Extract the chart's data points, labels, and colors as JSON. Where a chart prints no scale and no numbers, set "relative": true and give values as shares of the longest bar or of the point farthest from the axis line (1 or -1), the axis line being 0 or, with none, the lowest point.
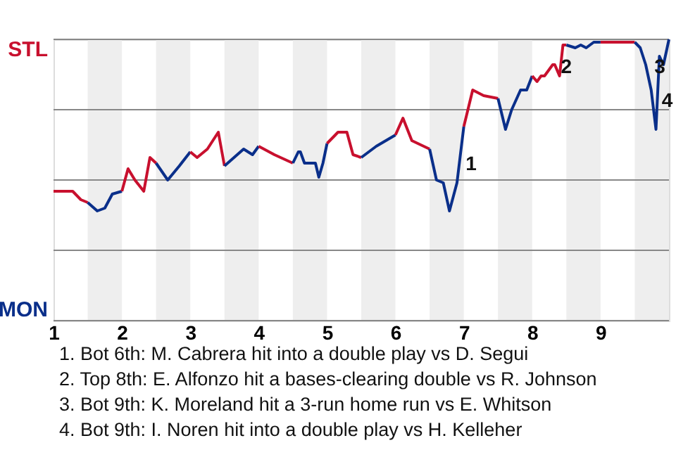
{
  "chart_data": {
    "type": "line",
    "relative": true,
    "series": [
      {
        "color": "#c8102e",
        "x": [
          1,
          1.28,
          1.4,
          1.5
        ],
        "values": [
          0.46,
          0.46,
          0.43,
          0.42
        ]
      },
      {
        "color": "#0a2f8a",
        "x": [
          1.5,
          1.64,
          1.75,
          1.86,
          2
        ],
        "values": [
          0.42,
          0.39,
          0.4,
          0.45,
          0.46
        ]
      },
      {
        "color": "#c8102e",
        "x": [
          2,
          2.09,
          2.19,
          2.32,
          2.41,
          2.5
        ],
        "values": [
          0.46,
          0.54,
          0.5,
          0.46,
          0.58,
          0.56
        ]
      },
      {
        "color": "#0a2f8a",
        "x": [
          2.5,
          2.67,
          2.84,
          3
        ],
        "values": [
          0.56,
          0.5,
          0.55,
          0.6
        ]
      },
      {
        "color": "#c8102e",
        "x": [
          3,
          3.1,
          3.25,
          3.41,
          3.5
        ],
        "values": [
          0.6,
          0.58,
          0.61,
          0.67,
          0.55
        ]
      },
      {
        "color": "#0a2f8a",
        "x": [
          3.5,
          3.78,
          3.91,
          4
        ],
        "values": [
          0.55,
          0.61,
          0.59,
          0.62
        ]
      },
      {
        "color": "#c8102e",
        "x": [
          4,
          4.23,
          4.5
        ],
        "values": [
          0.62,
          0.59,
          0.56
        ]
      },
      {
        "color": "#0a2f8a",
        "x": [
          4.5,
          4.58,
          4.61,
          4.67,
          4.83,
          4.88,
          4.94,
          5
        ],
        "values": [
          0.56,
          0.6,
          0.6,
          0.56,
          0.56,
          0.51,
          0.56,
          0.63
        ]
      },
      {
        "color": "#c8102e",
        "x": [
          5,
          5.16,
          5.29,
          5.38,
          5.5
        ],
        "values": [
          0.63,
          0.67,
          0.67,
          0.59,
          0.58
        ]
      },
      {
        "color": "#0a2f8a",
        "x": [
          5.5,
          5.72,
          6
        ],
        "values": [
          0.58,
          0.62,
          0.66
        ]
      },
      {
        "color": "#c8102e",
        "x": [
          6,
          6.11,
          6.24,
          6.5
        ],
        "values": [
          0.66,
          0.72,
          0.64,
          0.61
        ]
      },
      {
        "color": "#0a2f8a",
        "x": [
          6.5,
          6.6,
          6.7,
          6.79,
          6.9,
          7
        ],
        "values": [
          0.61,
          0.5,
          0.49,
          0.39,
          0.49,
          0.69
        ]
      },
      {
        "color": "#c8102e",
        "x": [
          7,
          7.13,
          7.29,
          7.5
        ],
        "values": [
          0.69,
          0.82,
          0.8,
          0.79
        ]
      },
      {
        "color": "#0a2f8a",
        "x": [
          7.5,
          7.61,
          7.7,
          7.83,
          7.92,
          8
        ],
        "values": [
          0.79,
          0.68,
          0.75,
          0.82,
          0.82,
          0.87
        ]
      },
      {
        "color": "#c8102e",
        "x": [
          8,
          8.07,
          8.13,
          8.18,
          8.3,
          8.33,
          8.4,
          8.45,
          8.5
        ],
        "values": [
          0.87,
          0.85,
          0.87,
          0.87,
          0.91,
          0.91,
          0.87,
          0.98,
          0.98
        ]
      },
      {
        "color": "#0a2f8a",
        "x": [
          8.5,
          8.63,
          8.71,
          8.79,
          8.9,
          9
        ],
        "values": [
          0.98,
          0.97,
          0.98,
          0.97,
          0.99,
          0.99
        ]
      },
      {
        "color": "#c8102e",
        "x": [
          9,
          9.5
        ],
        "values": [
          0.99,
          0.99
        ]
      },
      {
        "color": "#0a2f8a",
        "x": [
          9.5,
          9.58,
          9.66,
          9.74,
          9.81,
          9.86,
          9.92,
          10
        ],
        "values": [
          0.99,
          0.97,
          0.91,
          0.82,
          0.68,
          0.94,
          0.91,
          1
        ]
      }
    ],
    "xlim": [
      1,
      10
    ],
    "xticks": [
      1,
      2,
      3,
      4,
      5,
      6,
      7,
      8,
      9
    ],
    "ref_lines": [
      {
        "axis": "y",
        "value": 0.25,
        "color": "#888888"
      },
      {
        "axis": "y",
        "value": 0.5,
        "color": "#888888"
      },
      {
        "axis": "y",
        "value": 0.75,
        "color": "#888888"
      },
      {
        "axis": "y",
        "value": 1,
        "color": "#888888"
      }
    ],
    "bands": [
      {
        "axis": "x",
        "from": 1.5,
        "to": 2,
        "color": "#eeeeee"
      },
      {
        "axis": "x",
        "from": 2.5,
        "to": 3,
        "color": "#eeeeee"
      },
      {
        "axis": "x",
        "from": 3.5,
        "to": 4,
        "color": "#eeeeee"
      },
      {
        "axis": "x",
        "from": 4.5,
        "to": 5,
        "color": "#eeeeee"
      },
      {
        "axis": "x",
        "from": 5.5,
        "to": 6,
        "color": "#eeeeee"
      },
      {
        "axis": "x",
        "from": 6.5,
        "to": 7,
        "color": "#eeeeee"
      },
      {
        "axis": "x",
        "from": 7.5,
        "to": 8,
        "color": "#eeeeee"
      },
      {
        "axis": "x",
        "from": 8.5,
        "to": 9,
        "color": "#eeeeee"
      },
      {
        "axis": "x",
        "from": 9.5,
        "to": 10,
        "color": "#eeeeee"
      }
    ],
    "annotations": [
      {
        "text": "1",
        "x": 6.9,
        "y": 0.49
      },
      {
        "text": "2",
        "x": 8.5,
        "y": 0.98
      },
      {
        "text": "3",
        "x": 9.66,
        "y": 0.91
      },
      {
        "text": "4",
        "x": 9.81,
        "y": 0.68
      },
      "STL",
      "MON",
      "1. Bot 6th: M. Cabrera hit into a double play vs D. Segui",
      "2. Top 8th: E. Alfonzo hit a bases-clearing double vs R. Johnson",
      "3. Bot 9th: K. Moreland hit a 3-run home run vs E. Whitson",
      "4. Bot 9th: I. Noren hit into a double play vs H. Kelleher"
    ]
  }
}
